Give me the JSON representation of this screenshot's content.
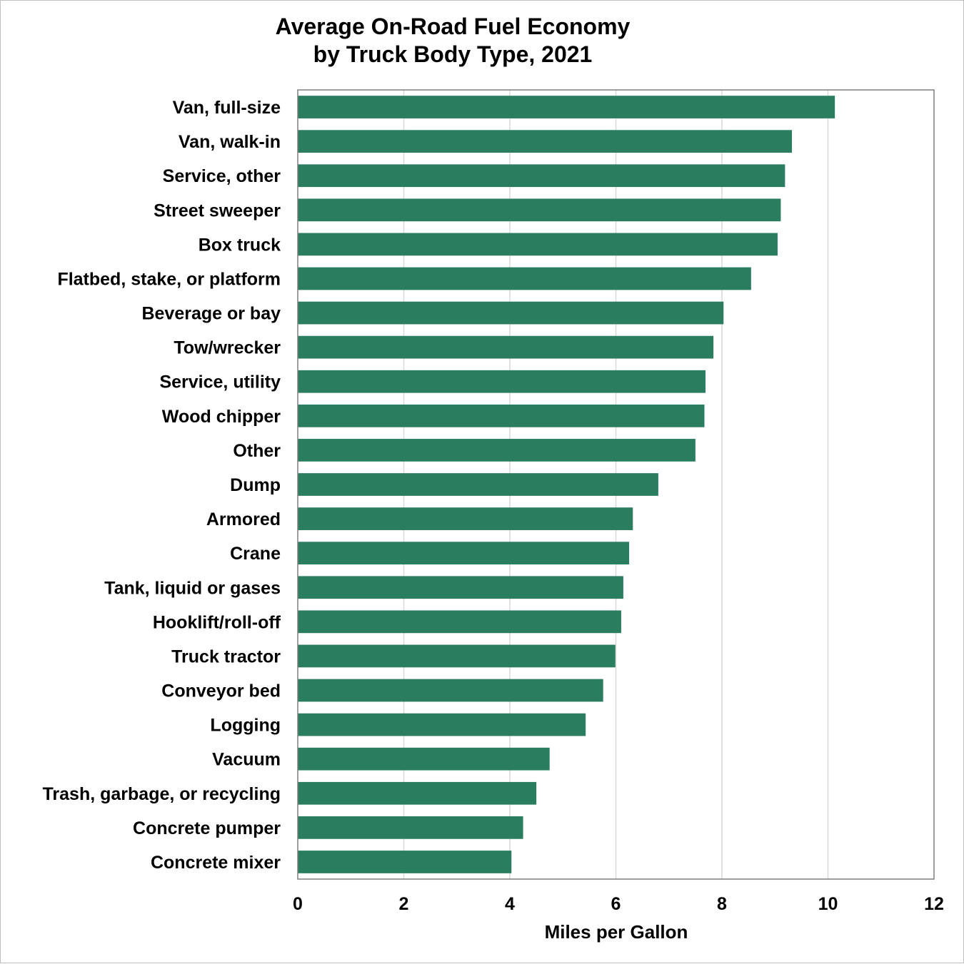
{
  "chart_data": {
    "type": "bar",
    "orientation": "horizontal",
    "title_lines": [
      "Average On-Road Fuel Economy",
      "by Truck Body Type, 2021"
    ],
    "xlabel": "Miles per Gallon",
    "ylabel": "",
    "xlim": [
      0,
      12
    ],
    "xticks": [
      0,
      2,
      4,
      6,
      8,
      10,
      12
    ],
    "grid": true,
    "bar_color": "#2a7d5f",
    "categories": [
      "Van, full-size",
      "Van, walk-in",
      "Service, other",
      "Street sweeper",
      "Box truck",
      "Flatbed, stake, or platform",
      "Beverage or bay",
      "Tow/wrecker",
      "Service, utility",
      "Wood chipper",
      "Other",
      "Dump",
      "Armored",
      "Crane",
      "Tank, liquid or gases",
      "Hooklift/roll-off",
      "Truck tractor",
      "Conveyor bed",
      "Logging",
      "Vacuum",
      "Trash, garbage, or recycling",
      "Concrete pumper",
      "Concrete mixer"
    ],
    "values": [
      10.13,
      9.32,
      9.19,
      9.11,
      9.05,
      8.55,
      8.03,
      7.84,
      7.69,
      7.67,
      7.5,
      6.8,
      6.32,
      6.25,
      6.14,
      6.1,
      5.99,
      5.76,
      5.43,
      4.75,
      4.5,
      4.25,
      4.03
    ]
  }
}
